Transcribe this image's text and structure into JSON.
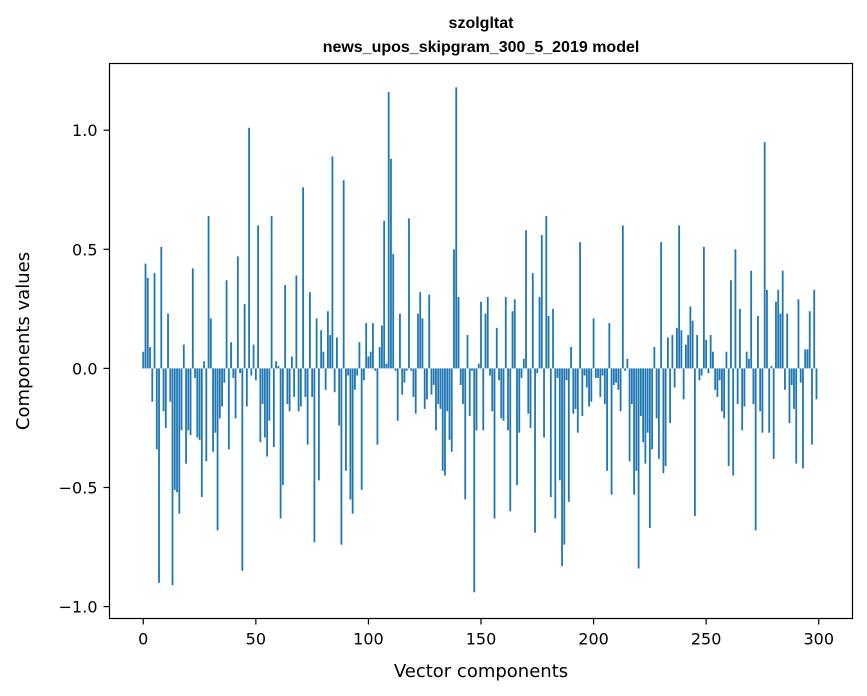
{
  "chart_data": {
    "type": "bar",
    "title": "szolgltat",
    "subtitle": "news_upos_skipgram_300_5_2019 model",
    "xlabel": "Vector components",
    "ylabel": "Components values",
    "xlim": [
      -15,
      315
    ],
    "ylim": [
      -1.05,
      1.28
    ],
    "xticks": [
      0,
      50,
      100,
      150,
      200,
      250,
      300
    ],
    "xtick_labels": [
      "0",
      "50",
      "100",
      "150",
      "200",
      "250",
      "300"
    ],
    "yticks": [
      -1.0,
      -0.5,
      0.0,
      0.5,
      1.0
    ],
    "ytick_labels": [
      "−1.0",
      "−0.5",
      "0.0",
      "0.5",
      "1.0"
    ],
    "bar_color": "#1f77b4",
    "grid": false,
    "values": [
      0.07,
      0.44,
      0.38,
      0.09,
      -0.14,
      0.4,
      -0.34,
      -0.9,
      0.51,
      -0.18,
      -0.25,
      0.23,
      -0.14,
      -0.91,
      -0.51,
      -0.52,
      -0.61,
      -0.26,
      0.1,
      -0.4,
      -0.26,
      -0.28,
      0.42,
      -0.04,
      -0.29,
      -0.3,
      -0.54,
      0.03,
      -0.39,
      0.64,
      0.21,
      -0.35,
      -0.27,
      -0.68,
      -0.21,
      -0.16,
      -0.06,
      0.37,
      -0.34,
      0.11,
      -0.04,
      -0.21,
      0.47,
      -0.02,
      -0.85,
      0.27,
      -0.16,
      1.01,
      -0.03,
      0.1,
      -0.05,
      0.6,
      -0.31,
      -0.15,
      -0.29,
      -0.37,
      -0.22,
      0.64,
      -0.33,
      0.03,
      0.01,
      -0.63,
      -0.49,
      0.35,
      -0.15,
      -0.18,
      0.05,
      -0.12,
      0.39,
      -0.18,
      -0.16,
      0.76,
      -0.12,
      -0.32,
      0.32,
      -0.12,
      -0.73,
      0.21,
      -0.47,
      0.16,
      0.07,
      -0.09,
      0.24,
      0.14,
      0.89,
      -0.1,
      0.13,
      -0.24,
      -0.74,
      0.79,
      -0.43,
      -0.03,
      -0.55,
      -0.61,
      -0.09,
      -0.03,
      0.11,
      -0.51,
      -0.05,
      0.19,
      0.05,
      0.07,
      0.19,
      -0.01,
      -0.32,
      0.09,
      0.18,
      0.62,
      0.02,
      1.16,
      0.88,
      0.48,
      -0.01,
      -0.22,
      0.23,
      -0.11,
      -0.06,
      -0.01,
      0.63,
      -0.01,
      -0.12,
      -0.19,
      0.23,
      0.32,
      0.21,
      -0.17,
      -0.13,
      0.31,
      -0.11,
      -0.07,
      -0.26,
      -0.15,
      -0.17,
      -0.43,
      -0.45,
      -0.18,
      -0.3,
      -0.35,
      0.5,
      1.18,
      0.3,
      -0.07,
      -0.15,
      -0.55,
      0.14,
      -0.2,
      -0.01,
      -0.94,
      -0.26,
      0.02,
      0.28,
      -0.26,
      0.23,
      0.3,
      -0.03,
      -0.18,
      -0.63,
      0.17,
      -0.05,
      -0.21,
      -0.22,
      0.3,
      -0.26,
      -0.6,
      0.24,
      0.29,
      -0.49,
      -0.27,
      -0.04,
      0.04,
      0.58,
      -0.19,
      -0.25,
      0.4,
      -0.69,
      -0.02,
      0.3,
      0.56,
      -0.29,
      0.64,
      0.22,
      -0.54,
      0.25,
      -0.63,
      -0.04,
      -0.47,
      -0.83,
      -0.74,
      -0.05,
      -0.56,
      0.09,
      -0.19,
      -0.17,
      -0.27,
      0.53,
      -0.2,
      -0.03,
      -0.08,
      -0.16,
      -0.14,
      0.21,
      -0.04,
      -0.04,
      -0.12,
      -0.03,
      -0.15,
      -0.43,
      0.19,
      -0.53,
      -0.07,
      -0.06,
      -0.09,
      -0.18,
      0.6,
      -0.01,
      0.04,
      -0.39,
      -0.15,
      -0.53,
      -0.43,
      -0.84,
      -0.2,
      -0.31,
      -0.4,
      -0.27,
      -0.67,
      -0.34,
      0.09,
      -0.21,
      -0.38,
      0.53,
      -0.44,
      -0.41,
      0.13,
      -0.23,
      0.14,
      -0.08,
      0.17,
      0.6,
      0.16,
      -0.13,
      0.1,
      0.14,
      0.26,
      0.2,
      -0.62,
      0.14,
      -0.05,
      -0.03,
      0.51,
      0.12,
      -0.02,
      0.14,
      0.07,
      -0.09,
      -0.12,
      -0.05,
      -0.18,
      -0.21,
      0.07,
      -0.41,
      0.37,
      -0.45,
      0.5,
      -0.15,
      0.25,
      -0.26,
      -0.16,
      0.07,
      0.04,
      0.41,
      -0.15,
      -0.68,
      0.22,
      -0.18,
      -0.27,
      0.95,
      0.33,
      -0.27,
      0.01,
      -0.38,
      0.28,
      0.33,
      0.23,
      0.41,
      -0.09,
      0.23,
      -0.23,
      -0.07,
      -0.17,
      -0.4,
      0.29,
      -0.06,
      -0.42,
      0.08,
      0.08,
      0.24,
      -0.32,
      0.33,
      -0.13
    ]
  }
}
